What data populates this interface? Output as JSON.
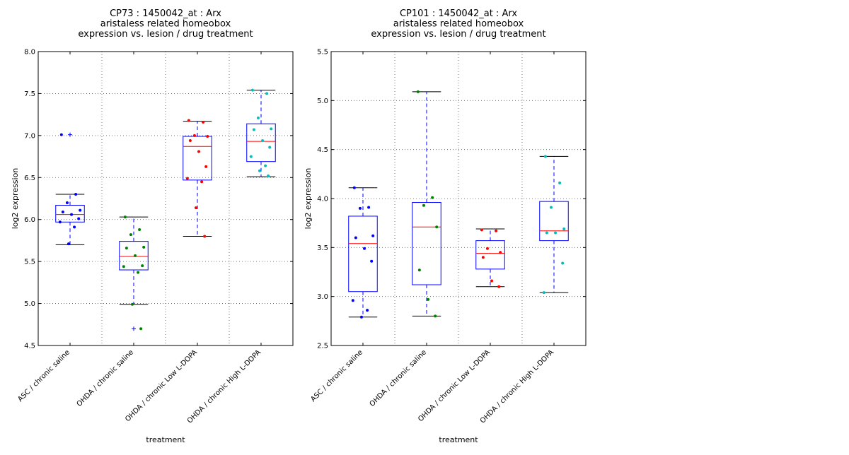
{
  "chart_data": [
    {
      "type": "box",
      "title": [
        "CP73 : 1450042_at : Arx",
        "aristaless related homeobox",
        "expression vs. lesion / drug treatment"
      ],
      "xlabel": "treatment",
      "ylabel": "log2 expression",
      "ylim": [
        4.5,
        8.0
      ],
      "yticks": [
        "4.5",
        "5.0",
        "5.5",
        "6.0",
        "6.5",
        "7.0",
        "7.5",
        "8.0"
      ],
      "grid": true,
      "categories": [
        "ASC / chronic saline",
        "OHDA / chronic saline",
        "OHDA / chronic Low L-DOPA",
        "OHDA / chronic High L-DOPA"
      ],
      "colors": [
        "#0000ff",
        "#008000",
        "#ff0000",
        "#00bfbf"
      ],
      "boxes": [
        {
          "whislo": 5.7,
          "q1": 5.97,
          "med": 6.06,
          "q3": 6.17,
          "whishi": 6.3,
          "fliers": [
            7.01
          ]
        },
        {
          "whislo": 4.99,
          "q1": 5.4,
          "med": 5.56,
          "q3": 5.74,
          "whishi": 6.03,
          "fliers": [
            4.7
          ]
        },
        {
          "whislo": 5.8,
          "q1": 6.47,
          "med": 6.87,
          "q3": 6.99,
          "whishi": 7.17,
          "fliers": []
        },
        {
          "whislo": 6.51,
          "q1": 6.69,
          "med": 6.93,
          "q3": 7.14,
          "whishi": 7.54,
          "fliers": []
        }
      ],
      "points": [
        [
          7.01,
          6.3,
          6.2,
          6.11,
          6.09,
          6.06,
          6.01,
          5.97,
          5.91,
          5.71
        ],
        [
          6.03,
          5.88,
          5.82,
          5.67,
          5.66,
          5.57,
          5.45,
          5.44,
          5.37,
          4.99,
          4.7
        ],
        [
          7.18,
          7.16,
          7.0,
          6.99,
          6.94,
          6.81,
          6.63,
          6.49,
          6.45,
          6.14,
          5.8
        ],
        [
          7.54,
          7.5,
          7.21,
          7.08,
          7.07,
          6.94,
          6.86,
          6.75,
          6.64,
          6.58,
          6.52
        ]
      ]
    },
    {
      "type": "box",
      "title": [
        "CP101 : 1450042_at : Arx",
        "aristaless related homeobox",
        "expression vs. lesion / drug treatment"
      ],
      "xlabel": "treatment",
      "ylabel": "log2 expression",
      "ylim": [
        2.5,
        5.5
      ],
      "yticks": [
        "2.5",
        "3.0",
        "3.5",
        "4.0",
        "4.5",
        "5.0",
        "5.5"
      ],
      "grid": true,
      "categories": [
        "ASC / chronic saline",
        "OHDA / chronic saline",
        "OHDA / chronic Low L-DOPA",
        "OHDA / chronic High L-DOPA"
      ],
      "colors": [
        "#0000ff",
        "#008000",
        "#ff0000",
        "#00bfbf"
      ],
      "boxes": [
        {
          "whislo": 2.79,
          "q1": 3.05,
          "med": 3.54,
          "q3": 3.82,
          "whishi": 4.11,
          "fliers": []
        },
        {
          "whislo": 2.8,
          "q1": 3.12,
          "med": 3.71,
          "q3": 3.96,
          "whishi": 5.09,
          "fliers": []
        },
        {
          "whislo": 3.1,
          "q1": 3.28,
          "med": 3.44,
          "q3": 3.57,
          "whishi": 3.69,
          "fliers": []
        },
        {
          "whislo": 3.04,
          "q1": 3.57,
          "med": 3.67,
          "q3": 3.97,
          "whishi": 4.43,
          "fliers": []
        }
      ],
      "points": [
        [
          4.11,
          3.91,
          3.9,
          3.62,
          3.6,
          3.49,
          3.36,
          2.96,
          2.86,
          2.79
        ],
        [
          5.09,
          4.01,
          3.93,
          3.71,
          3.27,
          2.97,
          2.8
        ],
        [
          3.68,
          3.67,
          3.49,
          3.45,
          3.4,
          3.16,
          3.1
        ],
        [
          4.43,
          4.16,
          3.91,
          3.69,
          3.65,
          3.65,
          3.34,
          3.04
        ]
      ]
    }
  ]
}
